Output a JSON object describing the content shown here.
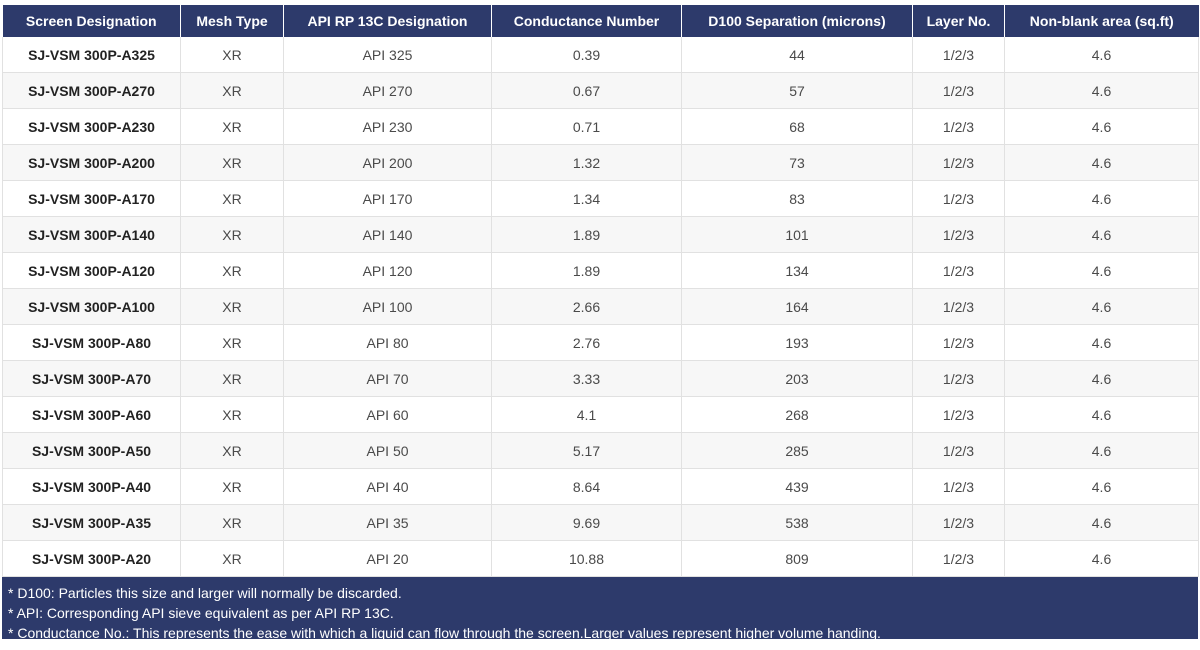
{
  "table": {
    "headers": [
      "Screen Designation",
      "Mesh Type",
      "API RP 13C Designation",
      "Conductance Number",
      "D100 Separation (microns)",
      "Layer No.",
      "Non-blank area (sq.ft)"
    ],
    "rows": [
      [
        "SJ-VSM 300P-A325",
        "XR",
        "API 325",
        "0.39",
        "44",
        "1/2/3",
        "4.6"
      ],
      [
        "SJ-VSM 300P-A270",
        "XR",
        "API 270",
        "0.67",
        "57",
        "1/2/3",
        "4.6"
      ],
      [
        "SJ-VSM 300P-A230",
        "XR",
        "API 230",
        "0.71",
        "68",
        "1/2/3",
        "4.6"
      ],
      [
        "SJ-VSM 300P-A200",
        "XR",
        "API 200",
        "1.32",
        "73",
        "1/2/3",
        "4.6"
      ],
      [
        "SJ-VSM 300P-A170",
        "XR",
        "API 170",
        "1.34",
        "83",
        "1/2/3",
        "4.6"
      ],
      [
        "SJ-VSM 300P-A140",
        "XR",
        "API 140",
        "1.89",
        "101",
        "1/2/3",
        "4.6"
      ],
      [
        "SJ-VSM 300P-A120",
        "XR",
        "API 120",
        "1.89",
        "134",
        "1/2/3",
        "4.6"
      ],
      [
        "SJ-VSM 300P-A100",
        "XR",
        "API 100",
        "2.66",
        "164",
        "1/2/3",
        "4.6"
      ],
      [
        "SJ-VSM 300P-A80",
        "XR",
        "API 80",
        "2.76",
        "193",
        "1/2/3",
        "4.6"
      ],
      [
        "SJ-VSM 300P-A70",
        "XR",
        "API 70",
        "3.33",
        "203",
        "1/2/3",
        "4.6"
      ],
      [
        "SJ-VSM 300P-A60",
        "XR",
        "API 60",
        "4.1",
        "268",
        "1/2/3",
        "4.6"
      ],
      [
        "SJ-VSM 300P-A50",
        "XR",
        "API 50",
        "5.17",
        "285",
        "1/2/3",
        "4.6"
      ],
      [
        "SJ-VSM 300P-A40",
        "XR",
        "API 40",
        "8.64",
        "439",
        "1/2/3",
        "4.6"
      ],
      [
        "SJ-VSM 300P-A35",
        "XR",
        "API 35",
        "9.69",
        "538",
        "1/2/3",
        "4.6"
      ],
      [
        "SJ-VSM 300P-A20",
        "XR",
        "API 20",
        "10.88",
        "809",
        "1/2/3",
        "4.6"
      ]
    ]
  },
  "notes": [
    "* D100: Particles this size and larger will normally be discarded.",
    "* API: Corresponding API sieve equivalent as per API RP 13C.",
    "* Conductance No.: This represents the ease with which a liquid can flow through the screen.Larger values represent higher volume handing."
  ],
  "colors": {
    "header_bg": "#2d3a6b",
    "header_text": "#ffffff",
    "row_alt_bg": "#f7f7f7",
    "border": "#e1e1e1"
  }
}
